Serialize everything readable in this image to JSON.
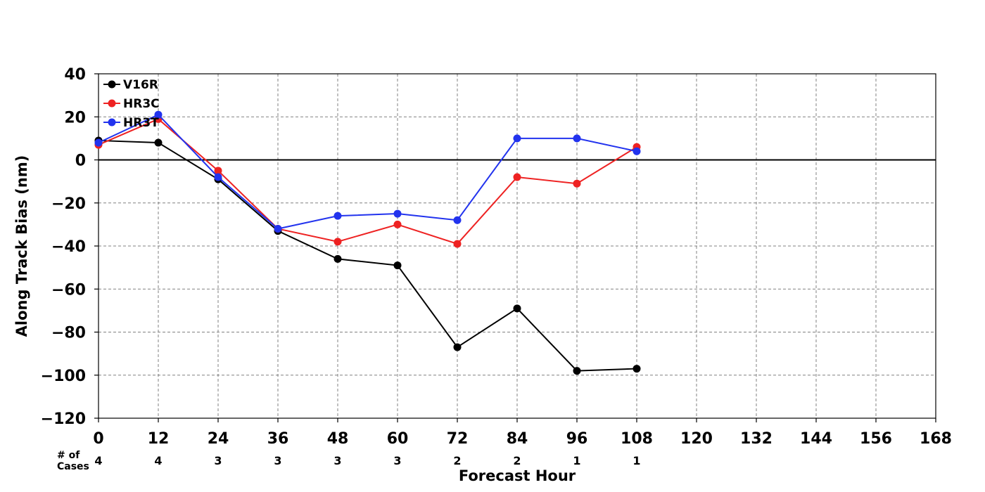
{
  "chart_data": {
    "type": "line",
    "xlabel": "Forecast Hour",
    "ylabel": "Along Track Bias (nm)",
    "xlim": [
      0,
      168
    ],
    "ylim": [
      -120,
      40
    ],
    "x_ticks": [
      "0",
      "12",
      "24",
      "36",
      "48",
      "60",
      "72",
      "84",
      "96",
      "108",
      "120",
      "132",
      "144",
      "156",
      "168"
    ],
    "y_ticks": [
      "40",
      "20",
      "0",
      "−20",
      "−40",
      "−60",
      "−80",
      "−100",
      "−120"
    ],
    "x": [
      0,
      12,
      24,
      36,
      48,
      60,
      72,
      84,
      96,
      108
    ],
    "series": [
      {
        "name": "V16R",
        "color": "#000000",
        "values": [
          9,
          8,
          -9,
          -33,
          -46,
          -49,
          -87,
          -69,
          -98,
          -97
        ]
      },
      {
        "name": "HR3C",
        "color": "#ee2222",
        "values": [
          7,
          19,
          -5,
          -32,
          -38,
          -30,
          -39,
          -8,
          -11,
          6
        ]
      },
      {
        "name": "HR3T",
        "color": "#2233ee",
        "values": [
          8,
          21,
          -8,
          -32,
          -26,
          -25,
          -28,
          10,
          10,
          4
        ]
      }
    ],
    "grid": true,
    "zero_line": true,
    "legend_position": "top-left",
    "cases_label": "# of Cases",
    "cases": [
      "4",
      "4",
      "3",
      "3",
      "3",
      "3",
      "2",
      "2",
      "1",
      "1"
    ]
  }
}
